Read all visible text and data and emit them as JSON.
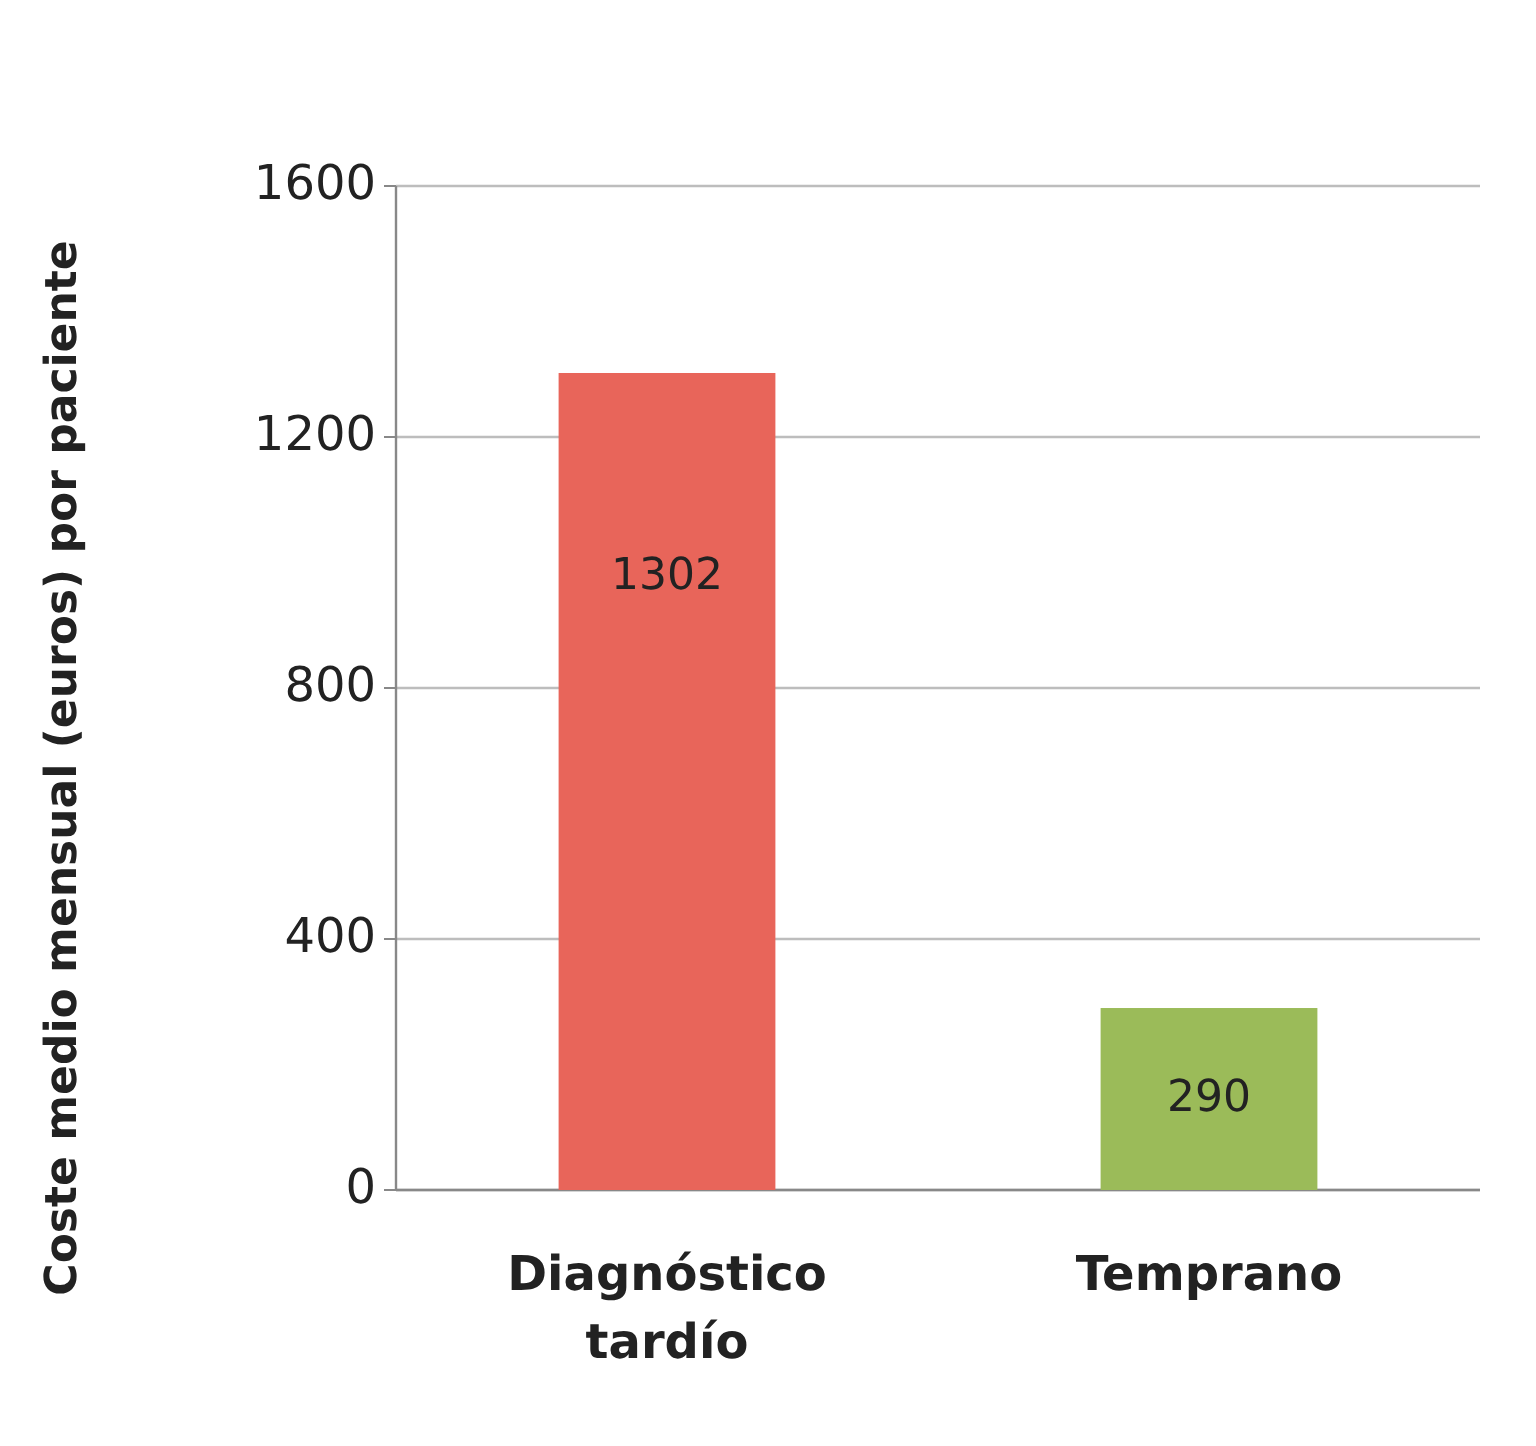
{
  "chart_data": {
    "type": "bar",
    "ylabel": "Coste medio mensual (euros) por paciente",
    "categories": [
      "Diagnóstico tardío",
      "Temprano"
    ],
    "values": [
      1302,
      290
    ],
    "colors": [
      "#e8655a",
      "#9bbb59"
    ],
    "ylim": [
      0,
      1600
    ],
    "yticks": [
      0,
      400,
      800,
      1200,
      1600
    ],
    "grid": "y",
    "data_labels": true
  }
}
